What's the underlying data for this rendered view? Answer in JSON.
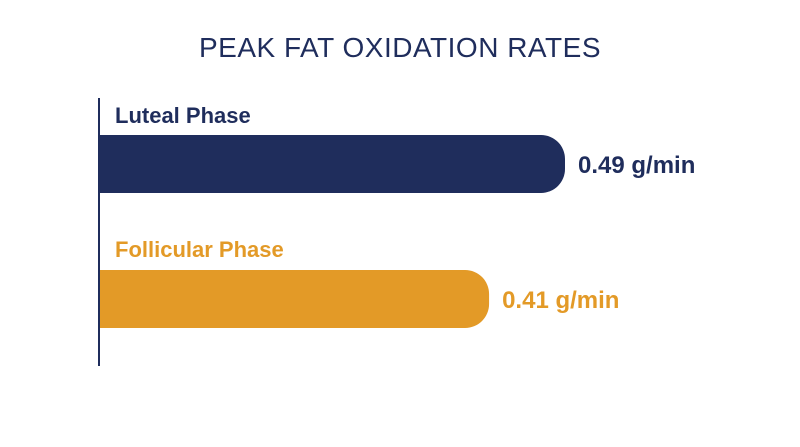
{
  "chart_data": {
    "type": "bar",
    "orientation": "horizontal",
    "title": "PEAK FAT OXIDATION RATES",
    "categories": [
      "Luteal Phase",
      "Follicular Phase"
    ],
    "values": [
      0.49,
      0.41
    ],
    "value_labels": [
      "0.49 g/min",
      "0.41 g/min"
    ],
    "colors": [
      "#1f2d5c",
      "#e39a27"
    ],
    "xlabel": "",
    "ylabel": "",
    "xlim": [
      0,
      0.49
    ],
    "grid": false,
    "legend": "none"
  }
}
